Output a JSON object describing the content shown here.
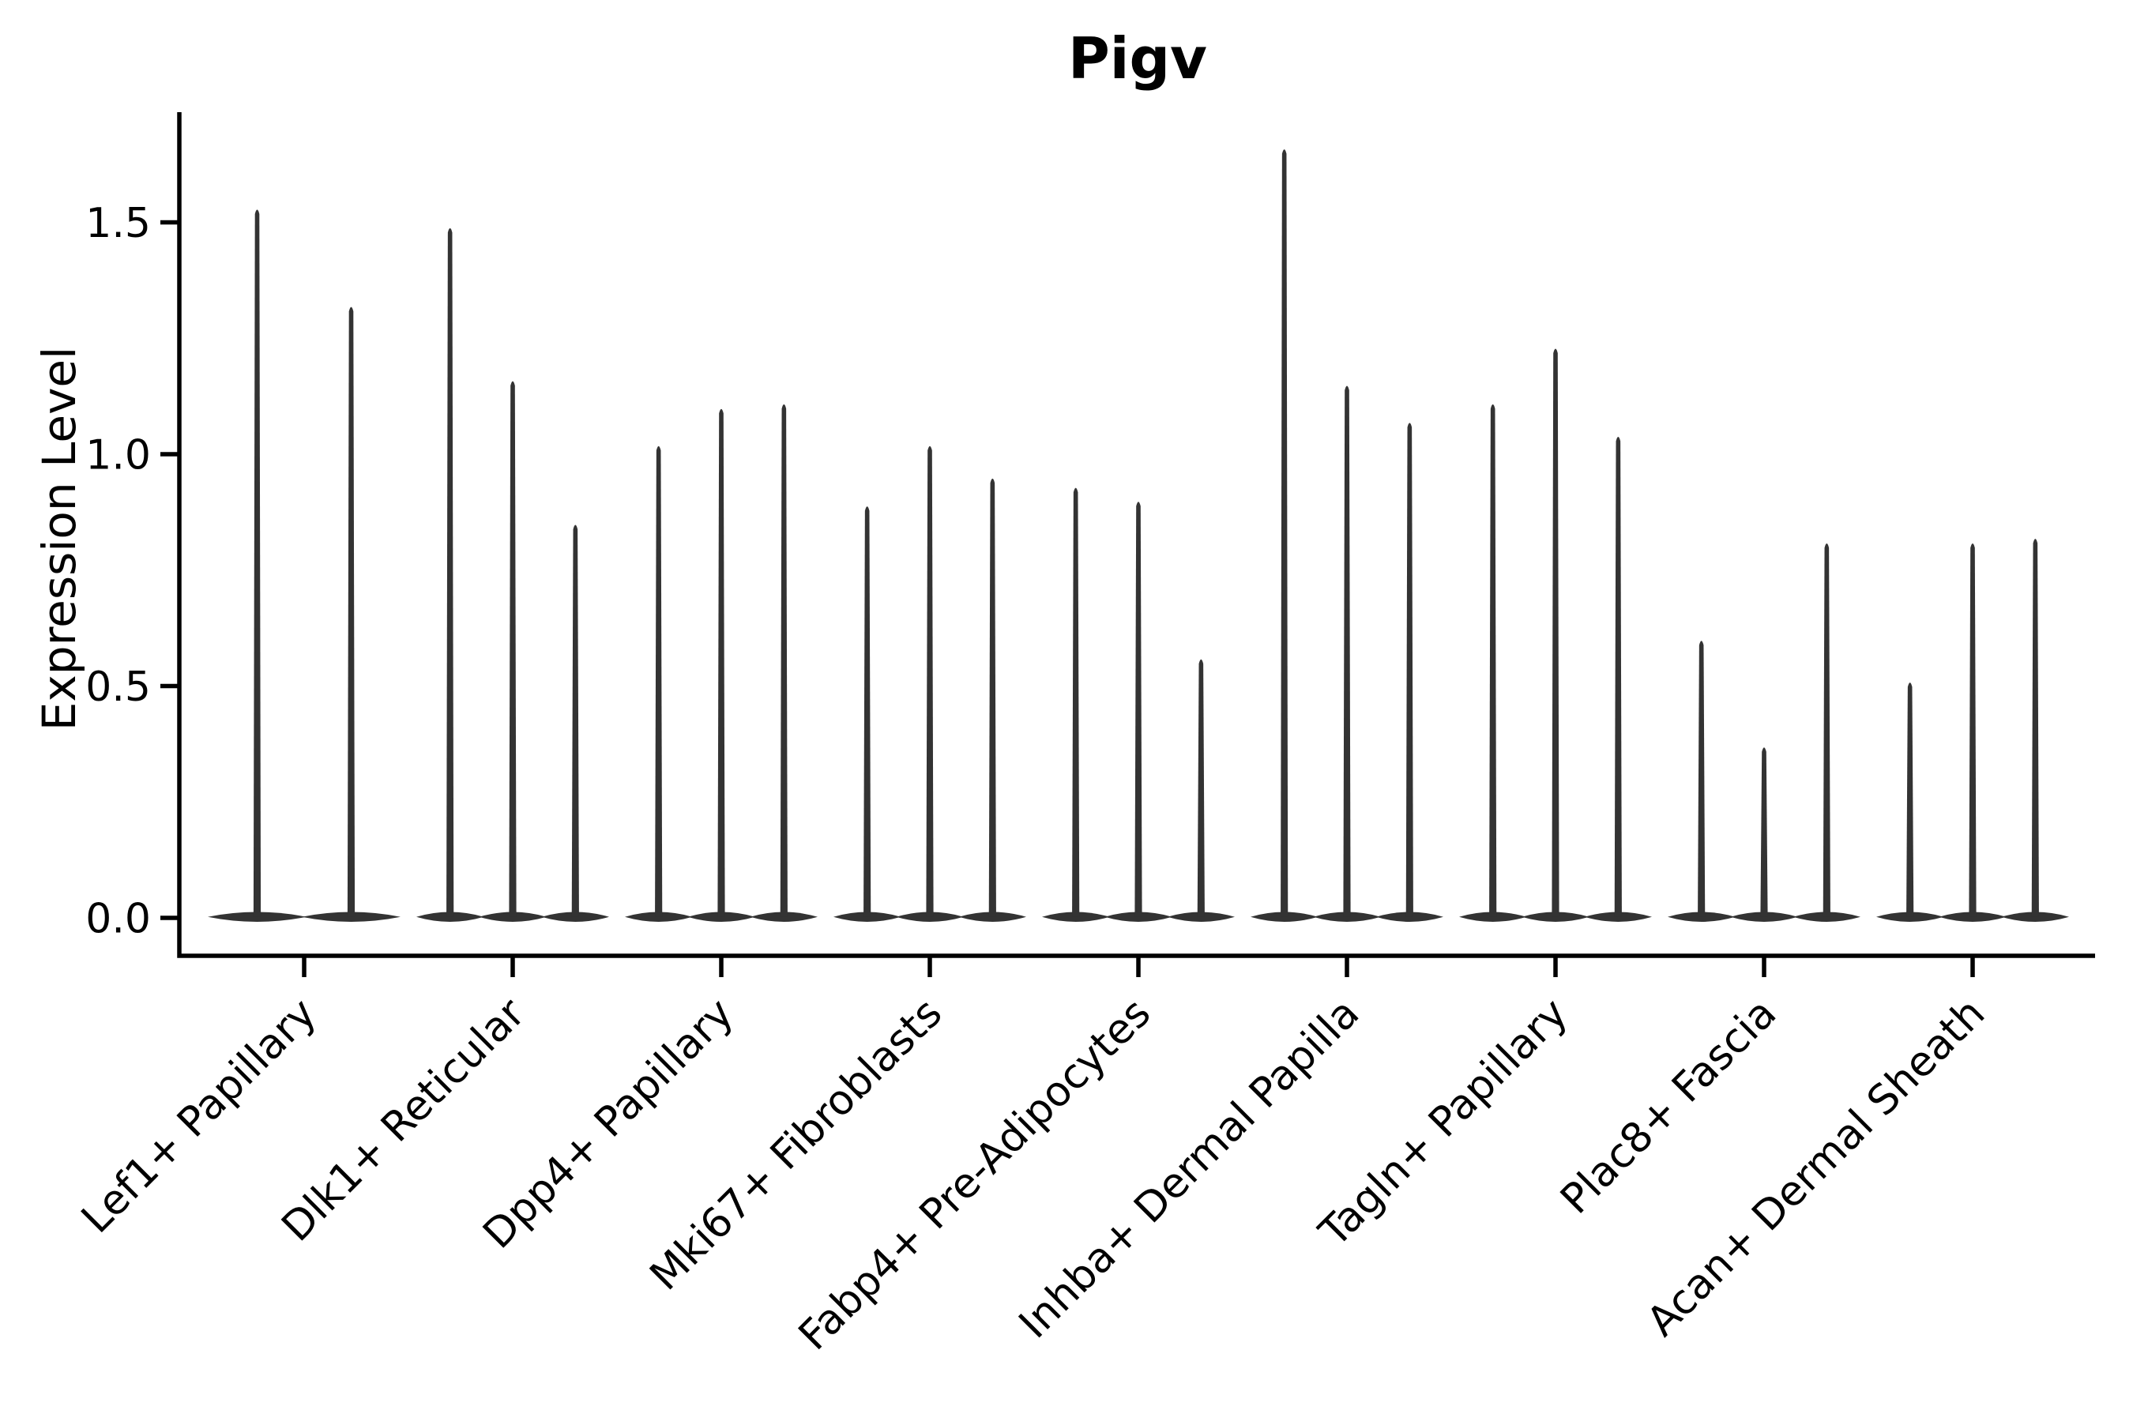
{
  "title": "Pigv",
  "axes": {
    "ylabel": "Expression Level",
    "xlabel": ""
  },
  "chart_data": {
    "type": "violin",
    "title": "Pigv",
    "xlabel": "",
    "ylabel": "Expression Level",
    "ylim": [
      -0.08,
      1.74
    ],
    "yticks": [
      0.0,
      0.5,
      1.0,
      1.5
    ],
    "ytick_labels": [
      "0.0",
      "0.5",
      "1.0",
      "1.5"
    ],
    "grid": false,
    "legend_position": "none",
    "categories": [
      "Lef1+ Papillary",
      "Dlk1+ Reticular",
      "Dpp4+ Papillary",
      "Mki67+ Fibroblasts",
      "Fabp4+ Pre-Adipocytes",
      "Inhba+ Dermal Papilla",
      "Tagln+ Papillary",
      "Plac8+ Fascia",
      "Acan+ Dermal Sheath"
    ],
    "violins": [
      {
        "category": "Lef1+ Papillary",
        "violin_max_expression": [
          1.53,
          1.32
        ]
      },
      {
        "category": "Dlk1+ Reticular",
        "violin_max_expression": [
          1.49,
          1.16,
          0.85
        ]
      },
      {
        "category": "Dpp4+ Papillary",
        "violin_max_expression": [
          1.02,
          1.1,
          1.11
        ]
      },
      {
        "category": "Mki67+ Fibroblasts",
        "violin_max_expression": [
          0.89,
          1.02,
          0.95
        ]
      },
      {
        "category": "Fabp4+ Pre-Adipocytes",
        "violin_max_expression": [
          0.93,
          0.9,
          0.56
        ]
      },
      {
        "category": "Inhba+ Dermal Papilla",
        "violin_max_expression": [
          1.66,
          1.15,
          1.07
        ]
      },
      {
        "category": "Tagln+ Papillary",
        "violin_max_expression": [
          1.11,
          1.23,
          1.04
        ]
      },
      {
        "category": "Plac8+ Fascia",
        "violin_max_expression": [
          0.6,
          0.37,
          0.81
        ]
      },
      {
        "category": "Acan+ Dermal Sheath",
        "violin_max_expression": [
          0.51,
          0.81,
          0.82
        ]
      }
    ],
    "violin_shape_note": "each violin is a flat lens at 0 expression with a thin density spike rising to its max value",
    "colors": {
      "violin_fill": "#333333",
      "axis": "#000000",
      "background": "#ffffff",
      "text": "#000000"
    }
  }
}
